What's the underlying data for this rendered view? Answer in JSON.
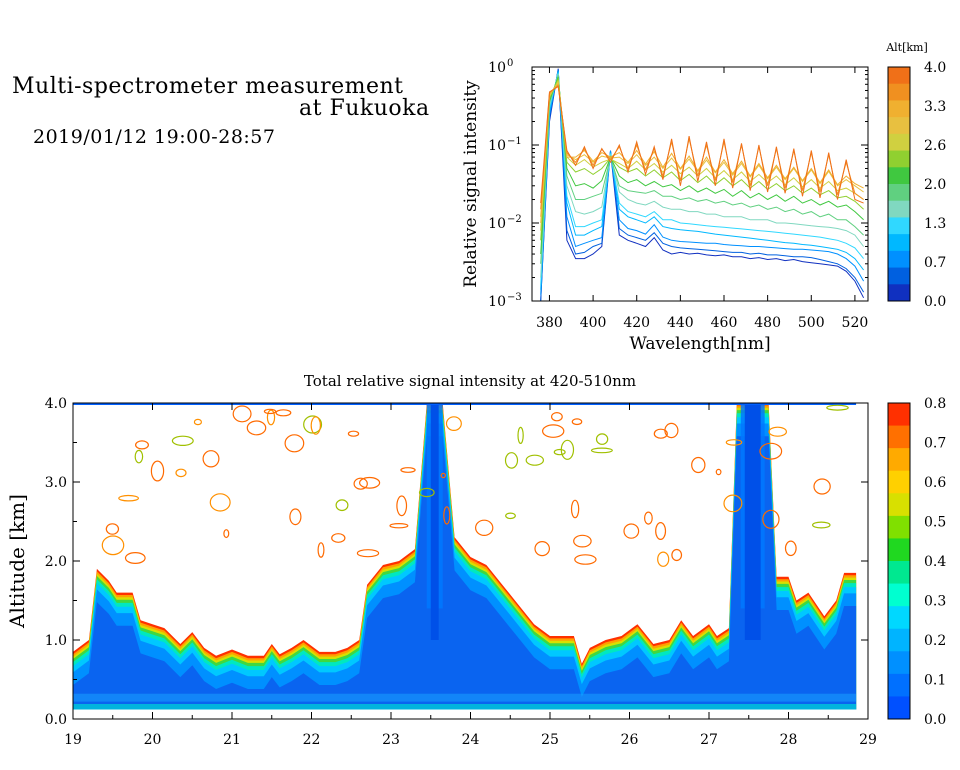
{
  "header": {
    "title_line1": "Multi-spectrometer measurement",
    "title_line2": "at Fukuoka",
    "datetime": "2019/01/12 19:00-28:57"
  },
  "colors": {
    "palette": [
      "#0050ff",
      "#0070ff",
      "#0090ff",
      "#00b4ff",
      "#00d8ff",
      "#00ffd0",
      "#00e890",
      "#20d820",
      "#80e000",
      "#d8e000",
      "#ffd000",
      "#ffaa00",
      "#ff7000",
      "#ff3000"
    ],
    "spectrum_curves": [
      "#1030c0",
      "#0060e0",
      "#0090ff",
      "#00b8ff",
      "#30d8ff",
      "#80d8c0",
      "#60d080",
      "#40c840",
      "#90d030",
      "#d0d040",
      "#e8c040",
      "#f0b030",
      "#f09020",
      "#f07018"
    ]
  },
  "chart_data": [
    {
      "type": "line",
      "x_scale": "linear",
      "y_scale": "log",
      "xlabel": "Wavelength[nm]",
      "ylabel": "Relative signal intensity",
      "xlim": [
        372,
        526
      ],
      "ylim": [
        0.001,
        1
      ],
      "x_ticks": [
        380,
        400,
        420,
        440,
        460,
        480,
        500,
        520
      ],
      "y_tick_labels": [
        {
          "value": 1,
          "base": "10",
          "exp": "0"
        },
        {
          "value": 0.1,
          "base": "10",
          "exp": "−1"
        },
        {
          "value": 0.01,
          "base": "10",
          "exp": "−2"
        },
        {
          "value": 0.001,
          "base": "10",
          "exp": "−3"
        }
      ],
      "x": [
        376,
        380,
        384,
        388,
        392,
        396,
        400,
        404,
        408,
        412,
        416,
        420,
        424,
        428,
        432,
        436,
        440,
        444,
        448,
        452,
        456,
        460,
        464,
        468,
        472,
        476,
        480,
        484,
        488,
        492,
        496,
        500,
        504,
        508,
        512,
        516,
        520,
        524
      ],
      "colorbar": {
        "title": "Alt[km]",
        "tick_labels": [
          "4.0",
          "3.3",
          "2.6",
          "2.0",
          "1.3",
          "0.7",
          "0.0"
        ],
        "range": [
          0,
          4
        ]
      },
      "series": [
        {
          "values": [
            0.001,
            0.2,
            0.95,
            0.006,
            0.0035,
            0.0035,
            0.004,
            0.005,
            0.083,
            0.007,
            0.006,
            0.0055,
            0.005,
            0.0065,
            0.0045,
            0.004,
            0.0042,
            0.004,
            0.0041,
            0.0039,
            0.0038,
            0.0039,
            0.0037,
            0.0037,
            0.0035,
            0.0036,
            0.0034,
            0.0035,
            0.0033,
            0.0034,
            0.0032,
            0.0031,
            0.003,
            0.0029,
            0.0028,
            0.0024,
            0.0018,
            0.0011
          ]
        },
        {
          "values": [
            0.001,
            0.22,
            0.93,
            0.008,
            0.004,
            0.0042,
            0.005,
            0.0055,
            0.085,
            0.0085,
            0.007,
            0.0065,
            0.006,
            0.0075,
            0.0055,
            0.005,
            0.0048,
            0.0047,
            0.0046,
            0.0045,
            0.0044,
            0.0043,
            0.0042,
            0.0042,
            0.004,
            0.0041,
            0.0039,
            0.0039,
            0.0038,
            0.0037,
            0.0037,
            0.0036,
            0.0034,
            0.0032,
            0.003,
            0.0026,
            0.002,
            0.0013
          ]
        },
        {
          "values": [
            0.0012,
            0.25,
            0.9,
            0.012,
            0.005,
            0.0055,
            0.006,
            0.0065,
            0.084,
            0.011,
            0.0085,
            0.008,
            0.0072,
            0.0095,
            0.0066,
            0.006,
            0.0058,
            0.0057,
            0.0056,
            0.0055,
            0.0055,
            0.0053,
            0.0052,
            0.0051,
            0.005,
            0.005,
            0.0049,
            0.0048,
            0.0047,
            0.0046,
            0.0046,
            0.0045,
            0.0044,
            0.0043,
            0.004,
            0.0035,
            0.0028,
            0.0018
          ]
        },
        {
          "values": [
            0.0014,
            0.27,
            0.88,
            0.018,
            0.007,
            0.007,
            0.008,
            0.009,
            0.08,
            0.015,
            0.012,
            0.011,
            0.01,
            0.012,
            0.009,
            0.0085,
            0.0082,
            0.008,
            0.0078,
            0.0075,
            0.0072,
            0.007,
            0.0068,
            0.0066,
            0.0064,
            0.0062,
            0.006,
            0.0058,
            0.0056,
            0.0055,
            0.0053,
            0.0052,
            0.005,
            0.0048,
            0.0046,
            0.0042,
            0.0035,
            0.0025
          ]
        },
        {
          "values": [
            0.0016,
            0.3,
            0.85,
            0.022,
            0.009,
            0.009,
            0.01,
            0.011,
            0.078,
            0.018,
            0.014,
            0.013,
            0.012,
            0.014,
            0.011,
            0.011,
            0.01,
            0.0098,
            0.0095,
            0.0092,
            0.009,
            0.0088,
            0.0086,
            0.0084,
            0.0082,
            0.008,
            0.0078,
            0.0076,
            0.0074,
            0.0072,
            0.007,
            0.0068,
            0.0066,
            0.0063,
            0.006,
            0.0055,
            0.0048,
            0.0035
          ]
        },
        {
          "values": [
            0.002,
            0.32,
            0.82,
            0.03,
            0.014,
            0.013,
            0.014,
            0.016,
            0.075,
            0.025,
            0.02,
            0.018,
            0.017,
            0.019,
            0.016,
            0.015,
            0.015,
            0.014,
            0.014,
            0.013,
            0.013,
            0.012,
            0.012,
            0.012,
            0.011,
            0.011,
            0.011,
            0.01,
            0.01,
            0.0098,
            0.0095,
            0.0092,
            0.009,
            0.0088,
            0.0085,
            0.008,
            0.007,
            0.005
          ]
        },
        {
          "values": [
            0.003,
            0.35,
            0.78,
            0.04,
            0.02,
            0.02,
            0.022,
            0.024,
            0.07,
            0.03,
            0.026,
            0.025,
            0.024,
            0.026,
            0.022,
            0.022,
            0.02,
            0.021,
            0.019,
            0.02,
            0.018,
            0.019,
            0.017,
            0.018,
            0.016,
            0.017,
            0.015,
            0.016,
            0.014,
            0.015,
            0.013,
            0.014,
            0.012,
            0.013,
            0.011,
            0.011,
            0.009,
            0.007
          ]
        },
        {
          "values": [
            0.004,
            0.37,
            0.74,
            0.05,
            0.03,
            0.032,
            0.028,
            0.035,
            0.07,
            0.04,
            0.033,
            0.036,
            0.03,
            0.034,
            0.029,
            0.031,
            0.026,
            0.03,
            0.025,
            0.028,
            0.024,
            0.027,
            0.022,
            0.026,
            0.021,
            0.024,
            0.02,
            0.023,
            0.019,
            0.022,
            0.018,
            0.02,
            0.017,
            0.019,
            0.016,
            0.017,
            0.014,
            0.011
          ]
        },
        {
          "values": [
            0.006,
            0.4,
            0.7,
            0.06,
            0.045,
            0.05,
            0.042,
            0.05,
            0.068,
            0.052,
            0.045,
            0.05,
            0.04,
            0.048,
            0.038,
            0.045,
            0.035,
            0.042,
            0.033,
            0.04,
            0.031,
            0.038,
            0.03,
            0.036,
            0.028,
            0.034,
            0.027,
            0.032,
            0.026,
            0.03,
            0.024,
            0.028,
            0.023,
            0.026,
            0.021,
            0.022,
            0.019,
            0.015
          ]
        },
        {
          "values": [
            0.008,
            0.42,
            0.66,
            0.07,
            0.055,
            0.065,
            0.052,
            0.06,
            0.066,
            0.058,
            0.05,
            0.062,
            0.048,
            0.058,
            0.045,
            0.055,
            0.043,
            0.052,
            0.04,
            0.05,
            0.038,
            0.047,
            0.036,
            0.045,
            0.034,
            0.042,
            0.033,
            0.04,
            0.031,
            0.038,
            0.029,
            0.036,
            0.028,
            0.034,
            0.026,
            0.028,
            0.024,
            0.02
          ]
        },
        {
          "values": [
            0.01,
            0.44,
            0.62,
            0.075,
            0.065,
            0.075,
            0.06,
            0.072,
            0.068,
            0.07,
            0.058,
            0.075,
            0.055,
            0.07,
            0.05,
            0.068,
            0.049,
            0.066,
            0.046,
            0.064,
            0.044,
            0.06,
            0.041,
            0.058,
            0.039,
            0.055,
            0.037,
            0.052,
            0.036,
            0.05,
            0.034,
            0.048,
            0.032,
            0.046,
            0.03,
            0.036,
            0.03,
            0.025
          ]
        },
        {
          "values": [
            0.012,
            0.45,
            0.6,
            0.07,
            0.07,
            0.085,
            0.062,
            0.08,
            0.07,
            0.08,
            0.06,
            0.085,
            0.057,
            0.082,
            0.052,
            0.078,
            0.05,
            0.072,
            0.047,
            0.07,
            0.045,
            0.065,
            0.043,
            0.062,
            0.04,
            0.058,
            0.038,
            0.055,
            0.037,
            0.052,
            0.035,
            0.05,
            0.033,
            0.048,
            0.031,
            0.04,
            0.032,
            0.028
          ]
        },
        {
          "values": [
            0.015,
            0.47,
            0.58,
            0.08,
            0.06,
            0.09,
            0.055,
            0.088,
            0.065,
            0.095,
            0.05,
            0.1,
            0.048,
            0.09,
            0.04,
            0.11,
            0.035,
            0.12,
            0.04,
            0.1,
            0.035,
            0.11,
            0.033,
            0.1,
            0.03,
            0.095,
            0.03,
            0.09,
            0.028,
            0.085,
            0.026,
            0.08,
            0.025,
            0.075,
            0.023,
            0.06,
            0.024,
            0.02
          ]
        },
        {
          "values": [
            0.018,
            0.48,
            0.56,
            0.085,
            0.055,
            0.095,
            0.05,
            0.09,
            0.06,
            0.1,
            0.045,
            0.11,
            0.042,
            0.095,
            0.036,
            0.12,
            0.03,
            0.13,
            0.034,
            0.11,
            0.03,
            0.12,
            0.028,
            0.105,
            0.026,
            0.1,
            0.025,
            0.095,
            0.024,
            0.09,
            0.022,
            0.085,
            0.021,
            0.08,
            0.02,
            0.065,
            0.02,
            0.018
          ]
        }
      ]
    },
    {
      "type": "heatmap",
      "title": "Total relative signal intensity at 420-510nm",
      "ylabel": "Altitude [km]",
      "xlim": [
        19,
        29
      ],
      "ylim": [
        0,
        4
      ],
      "x_ticks": [
        "19",
        "20",
        "21",
        "22",
        "23",
        "24",
        "25",
        "26",
        "27",
        "28",
        "29"
      ],
      "y_ticks": [
        "0.0",
        "1.0",
        "2.0",
        "3.0",
        "4.0"
      ],
      "boundary_layer_top_km": [
        [
          19.0,
          0.85
        ],
        [
          19.2,
          1.0
        ],
        [
          19.3,
          1.9
        ],
        [
          19.45,
          1.75
        ],
        [
          19.55,
          1.6
        ],
        [
          19.75,
          1.6
        ],
        [
          19.85,
          1.25
        ],
        [
          20.0,
          1.2
        ],
        [
          20.15,
          1.15
        ],
        [
          20.35,
          0.95
        ],
        [
          20.5,
          1.1
        ],
        [
          20.65,
          0.9
        ],
        [
          20.8,
          0.8
        ],
        [
          21.0,
          0.88
        ],
        [
          21.2,
          0.8
        ],
        [
          21.4,
          0.8
        ],
        [
          21.5,
          0.95
        ],
        [
          21.6,
          0.82
        ],
        [
          21.75,
          0.9
        ],
        [
          21.9,
          1.0
        ],
        [
          22.1,
          0.85
        ],
        [
          22.3,
          0.85
        ],
        [
          22.45,
          0.9
        ],
        [
          22.6,
          1.0
        ],
        [
          22.7,
          1.7
        ],
        [
          22.9,
          1.95
        ],
        [
          23.1,
          2.0
        ],
        [
          23.3,
          2.15
        ],
        [
          23.45,
          4.0
        ],
        [
          23.65,
          4.0
        ],
        [
          23.8,
          2.3
        ],
        [
          24.0,
          2.05
        ],
        [
          24.2,
          1.95
        ],
        [
          24.4,
          1.7
        ],
        [
          24.6,
          1.45
        ],
        [
          24.8,
          1.2
        ],
        [
          25.0,
          1.05
        ],
        [
          25.3,
          1.05
        ],
        [
          25.4,
          0.7
        ],
        [
          25.5,
          0.9
        ],
        [
          25.7,
          1.0
        ],
        [
          25.9,
          1.05
        ],
        [
          26.1,
          1.2
        ],
        [
          26.3,
          0.95
        ],
        [
          26.5,
          1.0
        ],
        [
          26.65,
          1.25
        ],
        [
          26.8,
          1.05
        ],
        [
          27.0,
          1.2
        ],
        [
          27.1,
          1.05
        ],
        [
          27.25,
          1.15
        ],
        [
          27.35,
          4.0
        ],
        [
          27.75,
          4.0
        ],
        [
          27.85,
          1.8
        ],
        [
          28.0,
          1.8
        ],
        [
          28.1,
          1.5
        ],
        [
          28.25,
          1.6
        ],
        [
          28.45,
          1.3
        ],
        [
          28.6,
          1.5
        ],
        [
          28.7,
          1.85
        ],
        [
          28.85,
          1.85
        ]
      ],
      "plume_x": [
        [
          23.5,
          23.6
        ],
        [
          27.45,
          27.65
        ]
      ],
      "data_end_x": 28.85,
      "colorbar": {
        "tick_labels": [
          "0.8",
          "0.7",
          "0.6",
          "0.5",
          "0.4",
          "0.3",
          "0.2",
          "0.1",
          "0.0"
        ],
        "range": [
          0,
          0.8
        ]
      }
    }
  ]
}
